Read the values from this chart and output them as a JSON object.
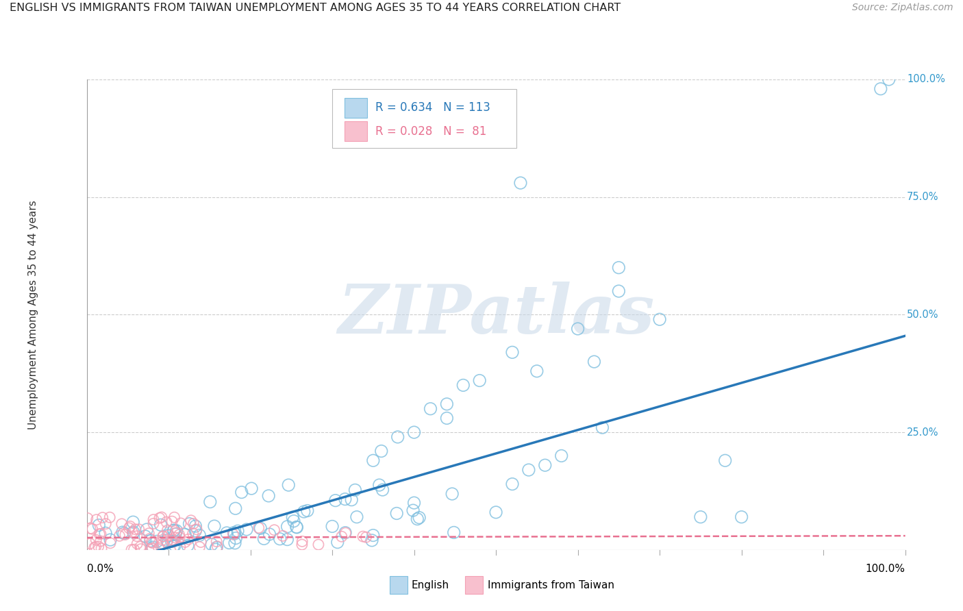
{
  "title": "ENGLISH VS IMMIGRANTS FROM TAIWAN UNEMPLOYMENT AMONG AGES 35 TO 44 YEARS CORRELATION CHART",
  "source": "Source: ZipAtlas.com",
  "ylabel": "Unemployment Among Ages 35 to 44 years",
  "series1_label": "English",
  "series2_label": "Immigrants from Taiwan",
  "legend1_R": "0.634",
  "legend1_N": "113",
  "legend2_R": "0.028",
  "legend2_N": " 81",
  "series1_color": "#7fbfdf",
  "series2_color": "#f4a0b5",
  "line1_color": "#2878b8",
  "line2_color": "#e87090",
  "background_color": "#ffffff",
  "grid_color": "#cccccc",
  "watermark": "ZIPatlas",
  "title_color": "#222222",
  "source_color": "#999999",
  "right_tick_color": "#3399cc",
  "eng_slope": 0.5,
  "eng_intercept": -0.045,
  "tai_slope": 0.004,
  "tai_intercept": 0.026
}
